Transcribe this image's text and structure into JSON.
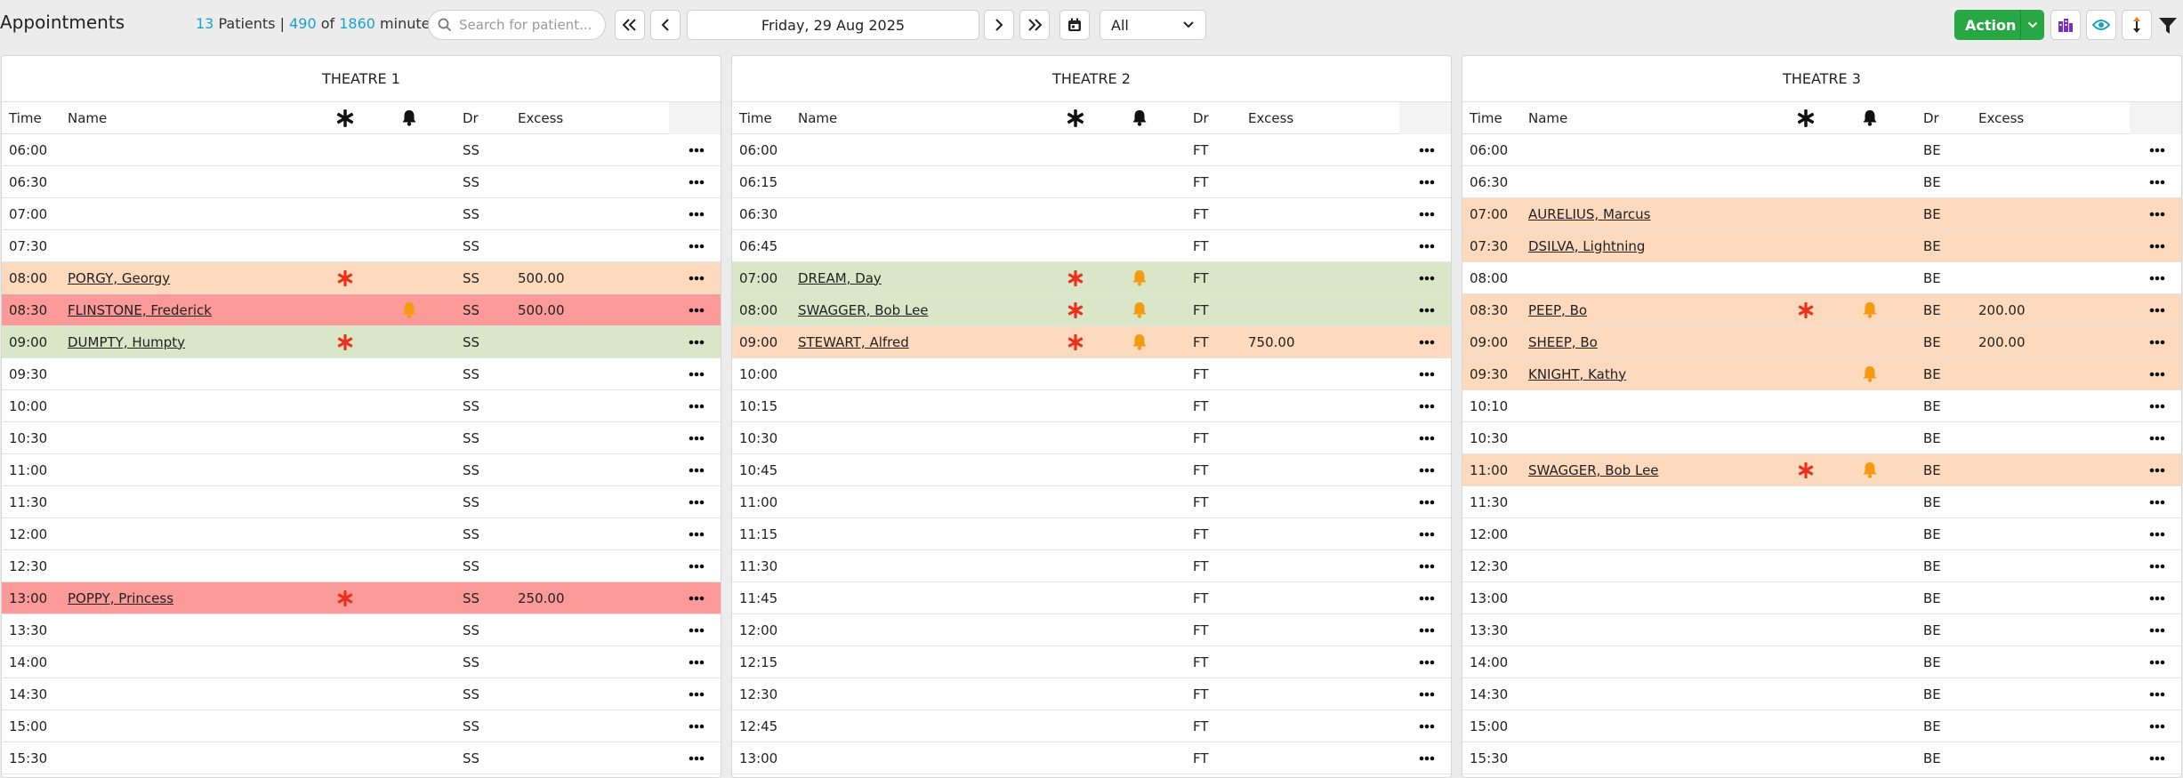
{
  "header": {
    "title": "Appointments",
    "patients_count": "13",
    "patients_label": "Patients |",
    "booked_minutes": "490",
    "of_label": "of",
    "total_minutes": "1860",
    "minutes_label": "minutes",
    "search_placeholder": "Search for patient...",
    "date": "Friday, 29 Aug 2025",
    "filter_value": "All",
    "action_label": "Action"
  },
  "colors": {
    "confirmed": "#fdd9bd",
    "alert": "#fb9a98",
    "arrived": "#d9e6c7",
    "accent": "#1aa3c8",
    "action": "#28a745",
    "star": "#e8321e",
    "bell": "#f39c12"
  },
  "columns": {
    "time": "Time",
    "name": "Name",
    "dr": "Dr",
    "excess": "Excess"
  },
  "theatres": [
    {
      "title": "THEATRE 1",
      "rows": [
        {
          "time": "06:00",
          "name": "",
          "star": false,
          "bell": false,
          "dr": "SS",
          "excess": "",
          "status": "free"
        },
        {
          "time": "06:30",
          "name": "",
          "star": false,
          "bell": false,
          "dr": "SS",
          "excess": "",
          "status": "free"
        },
        {
          "time": "07:00",
          "name": "",
          "star": false,
          "bell": false,
          "dr": "SS",
          "excess": "",
          "status": "free"
        },
        {
          "time": "07:30",
          "name": "",
          "star": false,
          "bell": false,
          "dr": "SS",
          "excess": "",
          "status": "free"
        },
        {
          "time": "08:00",
          "name": "PORGY, Georgy",
          "star": true,
          "bell": false,
          "dr": "SS",
          "excess": "500.00",
          "status": "confirmed"
        },
        {
          "time": "08:30",
          "name": "FLINSTONE, Frederick",
          "star": false,
          "bell": true,
          "dr": "SS",
          "excess": "500.00",
          "status": "alert"
        },
        {
          "time": "09:00",
          "name": "DUMPTY, Humpty",
          "star": true,
          "bell": false,
          "dr": "SS",
          "excess": "",
          "status": "arrived"
        },
        {
          "time": "09:30",
          "name": "",
          "star": false,
          "bell": false,
          "dr": "SS",
          "excess": "",
          "status": "free"
        },
        {
          "time": "10:00",
          "name": "",
          "star": false,
          "bell": false,
          "dr": "SS",
          "excess": "",
          "status": "free"
        },
        {
          "time": "10:30",
          "name": "",
          "star": false,
          "bell": false,
          "dr": "SS",
          "excess": "",
          "status": "free"
        },
        {
          "time": "11:00",
          "name": "",
          "star": false,
          "bell": false,
          "dr": "SS",
          "excess": "",
          "status": "free"
        },
        {
          "time": "11:30",
          "name": "",
          "star": false,
          "bell": false,
          "dr": "SS",
          "excess": "",
          "status": "free"
        },
        {
          "time": "12:00",
          "name": "",
          "star": false,
          "bell": false,
          "dr": "SS",
          "excess": "",
          "status": "free"
        },
        {
          "time": "12:30",
          "name": "",
          "star": false,
          "bell": false,
          "dr": "SS",
          "excess": "",
          "status": "free"
        },
        {
          "time": "13:00",
          "name": "POPPY, Princess",
          "star": true,
          "bell": false,
          "dr": "SS",
          "excess": "250.00",
          "status": "alert"
        },
        {
          "time": "13:30",
          "name": "",
          "star": false,
          "bell": false,
          "dr": "SS",
          "excess": "",
          "status": "free"
        },
        {
          "time": "14:00",
          "name": "",
          "star": false,
          "bell": false,
          "dr": "SS",
          "excess": "",
          "status": "free"
        },
        {
          "time": "14:30",
          "name": "",
          "star": false,
          "bell": false,
          "dr": "SS",
          "excess": "",
          "status": "free"
        },
        {
          "time": "15:00",
          "name": "",
          "star": false,
          "bell": false,
          "dr": "SS",
          "excess": "",
          "status": "free"
        },
        {
          "time": "15:30",
          "name": "",
          "star": false,
          "bell": false,
          "dr": "SS",
          "excess": "",
          "status": "free"
        }
      ]
    },
    {
      "title": "THEATRE 2",
      "rows": [
        {
          "time": "06:00",
          "name": "",
          "star": false,
          "bell": false,
          "dr": "FT",
          "excess": "",
          "status": "free"
        },
        {
          "time": "06:15",
          "name": "",
          "star": false,
          "bell": false,
          "dr": "FT",
          "excess": "",
          "status": "free"
        },
        {
          "time": "06:30",
          "name": "",
          "star": false,
          "bell": false,
          "dr": "FT",
          "excess": "",
          "status": "free"
        },
        {
          "time": "06:45",
          "name": "",
          "star": false,
          "bell": false,
          "dr": "FT",
          "excess": "",
          "status": "free"
        },
        {
          "time": "07:00",
          "name": "DREAM, Day",
          "star": true,
          "bell": true,
          "dr": "FT",
          "excess": "",
          "status": "arrived"
        },
        {
          "time": "08:00",
          "name": "SWAGGER, Bob Lee",
          "star": true,
          "bell": true,
          "dr": "FT",
          "excess": "",
          "status": "arrived"
        },
        {
          "time": "09:00",
          "name": "STEWART, Alfred",
          "star": true,
          "bell": true,
          "dr": "FT",
          "excess": "750.00",
          "status": "confirmed"
        },
        {
          "time": "10:00",
          "name": "",
          "star": false,
          "bell": false,
          "dr": "FT",
          "excess": "",
          "status": "free"
        },
        {
          "time": "10:15",
          "name": "",
          "star": false,
          "bell": false,
          "dr": "FT",
          "excess": "",
          "status": "free"
        },
        {
          "time": "10:30",
          "name": "",
          "star": false,
          "bell": false,
          "dr": "FT",
          "excess": "",
          "status": "free"
        },
        {
          "time": "10:45",
          "name": "",
          "star": false,
          "bell": false,
          "dr": "FT",
          "excess": "",
          "status": "free"
        },
        {
          "time": "11:00",
          "name": "",
          "star": false,
          "bell": false,
          "dr": "FT",
          "excess": "",
          "status": "free"
        },
        {
          "time": "11:15",
          "name": "",
          "star": false,
          "bell": false,
          "dr": "FT",
          "excess": "",
          "status": "free"
        },
        {
          "time": "11:30",
          "name": "",
          "star": false,
          "bell": false,
          "dr": "FT",
          "excess": "",
          "status": "free"
        },
        {
          "time": "11:45",
          "name": "",
          "star": false,
          "bell": false,
          "dr": "FT",
          "excess": "",
          "status": "free"
        },
        {
          "time": "12:00",
          "name": "",
          "star": false,
          "bell": false,
          "dr": "FT",
          "excess": "",
          "status": "free"
        },
        {
          "time": "12:15",
          "name": "",
          "star": false,
          "bell": false,
          "dr": "FT",
          "excess": "",
          "status": "free"
        },
        {
          "time": "12:30",
          "name": "",
          "star": false,
          "bell": false,
          "dr": "FT",
          "excess": "",
          "status": "free"
        },
        {
          "time": "12:45",
          "name": "",
          "star": false,
          "bell": false,
          "dr": "FT",
          "excess": "",
          "status": "free"
        },
        {
          "time": "13:00",
          "name": "",
          "star": false,
          "bell": false,
          "dr": "FT",
          "excess": "",
          "status": "free"
        }
      ]
    },
    {
      "title": "THEATRE 3",
      "rows": [
        {
          "time": "06:00",
          "name": "",
          "star": false,
          "bell": false,
          "dr": "BE",
          "excess": "",
          "status": "free"
        },
        {
          "time": "06:30",
          "name": "",
          "star": false,
          "bell": false,
          "dr": "BE",
          "excess": "",
          "status": "free"
        },
        {
          "time": "07:00",
          "name": "AURELIUS, Marcus",
          "star": false,
          "bell": false,
          "dr": "BE",
          "excess": "",
          "status": "confirmed"
        },
        {
          "time": "07:30",
          "name": "DSILVA, Lightning",
          "star": false,
          "bell": false,
          "dr": "BE",
          "excess": "",
          "status": "confirmed"
        },
        {
          "time": "08:00",
          "name": "",
          "star": false,
          "bell": false,
          "dr": "BE",
          "excess": "",
          "status": "free"
        },
        {
          "time": "08:30",
          "name": "PEEP, Bo",
          "star": true,
          "bell": true,
          "dr": "BE",
          "excess": "200.00",
          "status": "confirmed"
        },
        {
          "time": "09:00",
          "name": "SHEEP, Bo",
          "star": false,
          "bell": false,
          "dr": "BE",
          "excess": "200.00",
          "status": "confirmed"
        },
        {
          "time": "09:30",
          "name": "KNIGHT, Kathy",
          "star": false,
          "bell": true,
          "dr": "BE",
          "excess": "",
          "status": "confirmed"
        },
        {
          "time": "10:10",
          "name": "",
          "star": false,
          "bell": false,
          "dr": "BE",
          "excess": "",
          "status": "free"
        },
        {
          "time": "10:30",
          "name": "",
          "star": false,
          "bell": false,
          "dr": "BE",
          "excess": "",
          "status": "free"
        },
        {
          "time": "11:00",
          "name": "SWAGGER, Bob Lee",
          "star": true,
          "bell": true,
          "dr": "BE",
          "excess": "",
          "status": "confirmed"
        },
        {
          "time": "11:30",
          "name": "",
          "star": false,
          "bell": false,
          "dr": "BE",
          "excess": "",
          "status": "free"
        },
        {
          "time": "12:00",
          "name": "",
          "star": false,
          "bell": false,
          "dr": "BE",
          "excess": "",
          "status": "free"
        },
        {
          "time": "12:30",
          "name": "",
          "star": false,
          "bell": false,
          "dr": "BE",
          "excess": "",
          "status": "free"
        },
        {
          "time": "13:00",
          "name": "",
          "star": false,
          "bell": false,
          "dr": "BE",
          "excess": "",
          "status": "free"
        },
        {
          "time": "13:30",
          "name": "",
          "star": false,
          "bell": false,
          "dr": "BE",
          "excess": "",
          "status": "free"
        },
        {
          "time": "14:00",
          "name": "",
          "star": false,
          "bell": false,
          "dr": "BE",
          "excess": "",
          "status": "free"
        },
        {
          "time": "14:30",
          "name": "",
          "star": false,
          "bell": false,
          "dr": "BE",
          "excess": "",
          "status": "free"
        },
        {
          "time": "15:00",
          "name": "",
          "star": false,
          "bell": false,
          "dr": "BE",
          "excess": "",
          "status": "free"
        },
        {
          "time": "15:30",
          "name": "",
          "star": false,
          "bell": false,
          "dr": "BE",
          "excess": "",
          "status": "free"
        }
      ]
    }
  ]
}
